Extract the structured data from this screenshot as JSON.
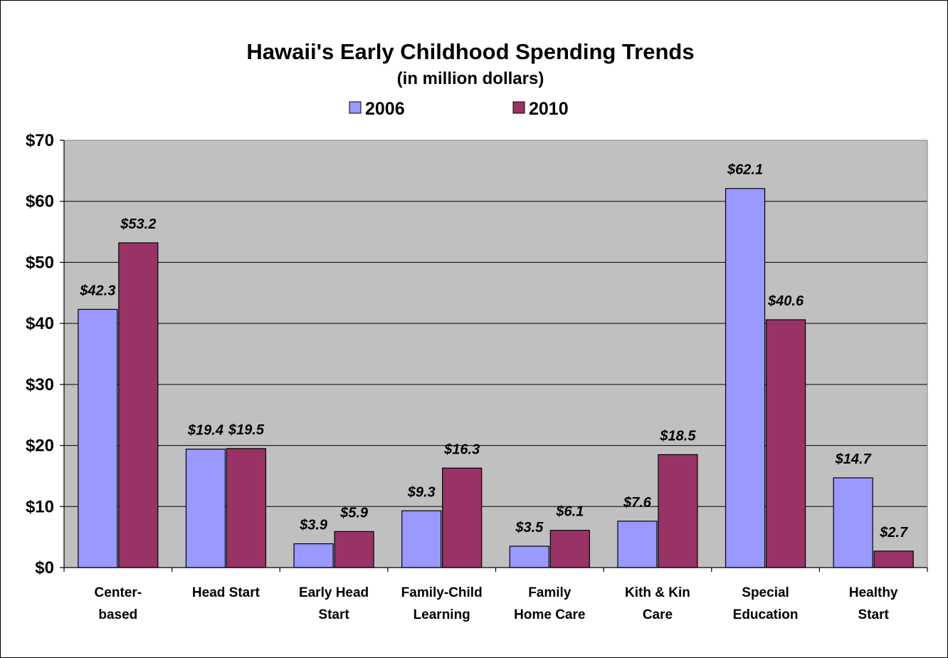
{
  "chart_data": {
    "type": "bar",
    "title": "Hawaii's Early Childhood Spending Trends",
    "subtitle": "(in million dollars)",
    "categories": [
      [
        "Center-",
        "based"
      ],
      [
        "Head Start"
      ],
      [
        "Early Head",
        "Start"
      ],
      [
        "Family-Child",
        "Learning"
      ],
      [
        "Family",
        "Home Care"
      ],
      [
        "Kith & Kin",
        "Care"
      ],
      [
        "Special",
        "Education"
      ],
      [
        "Healthy",
        "Start"
      ]
    ],
    "series": [
      {
        "name": "2006",
        "values": [
          42.3,
          19.4,
          3.9,
          9.3,
          3.5,
          7.6,
          62.1,
          14.7
        ],
        "labels": [
          "$42.3",
          "$19.4",
          "$3.9",
          "$9.3",
          "$3.5",
          "$7.6",
          "$62.1",
          "$14.7"
        ],
        "color": "#9999ff"
      },
      {
        "name": "2010",
        "values": [
          53.2,
          19.5,
          5.9,
          16.3,
          6.1,
          18.5,
          40.6,
          2.7
        ],
        "labels": [
          "$53.2",
          "$19.5",
          "$5.9",
          "$16.3",
          "$6.1",
          "$18.5",
          "$40.6",
          "$2.7"
        ],
        "color": "#993366"
      }
    ],
    "ylim": [
      0,
      70
    ],
    "yticks": [
      0,
      10,
      20,
      30,
      40,
      50,
      60,
      70
    ],
    "ytick_labels": [
      "$0",
      "$10",
      "$20",
      "$30",
      "$40",
      "$50",
      "$60",
      "$70"
    ],
    "plot_background": "#c0c0c0",
    "grid": true,
    "legend_position": "top"
  }
}
